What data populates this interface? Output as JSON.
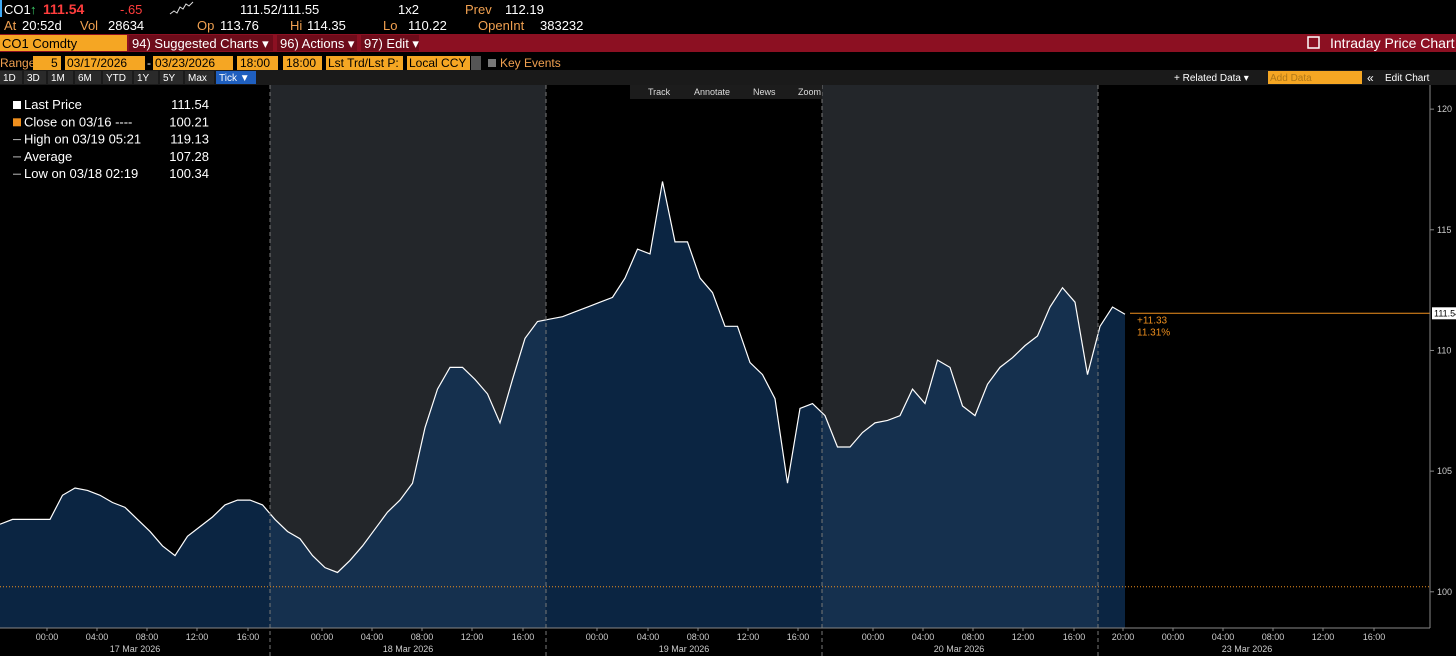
{
  "header": {
    "ticker": "CO1",
    "arrow": "↑",
    "last": "111.54",
    "change": "-.65",
    "bid_ask": "111.52/111.55",
    "size": "1x2",
    "prev_label": "Prev",
    "prev": "112.19",
    "at_label": "At",
    "time": "20:52d",
    "vol_label": "Vol",
    "vol": "28634",
    "op_label": "Op",
    "op": "113.76",
    "hi_label": "Hi",
    "hi": "114.35",
    "lo_label": "Lo",
    "lo": "110.22",
    "oi_label": "OpenInt",
    "oi": "383232"
  },
  "menu": {
    "security": "CO1 Comdty",
    "items": [
      "94) Suggested Charts ▾",
      "96) Actions ▾",
      "97) Edit ▾"
    ],
    "title": "Intraday Price Chart"
  },
  "range_bar": {
    "range_label": "Range",
    "range_n": "5",
    "start": "03/17/2026",
    "dash": "-",
    "end": "03/23/2026",
    "time_from": "18:00",
    "time_to": "18:00",
    "field": "Lst Trd/Lst P:",
    "currency": "Local CCY",
    "key_events": "Key Events"
  },
  "periods": [
    "1D",
    "3D",
    "1M",
    "6M",
    "YTD",
    "1Y",
    "5Y",
    "Max",
    "Tick ▼"
  ],
  "right_tools": {
    "related": "+ Related Data ▾",
    "add": "Add Data",
    "collapse": "«",
    "edit": "Edit Chart"
  },
  "chart_tools": [
    "Track",
    "Annotate",
    "News",
    "Zoom"
  ],
  "chart_data": {
    "type": "area",
    "color": "#ffffff",
    "fill": "#0b2542",
    "values": [
      102.8,
      103,
      103,
      103,
      103,
      104,
      104.3,
      104.2,
      104,
      103.7,
      103.5,
      103,
      102.5,
      101.9,
      101.5,
      102.3,
      102.7,
      103.1,
      103.6,
      103.8,
      103.8,
      103.6,
      103,
      102.5,
      102.2,
      101.5,
      101,
      100.8,
      101.3,
      101.9,
      102.6,
      103.3,
      103.8,
      104.5,
      106.8,
      108.4,
      109.3,
      109.3,
      108.8,
      108.2,
      107,
      108.8,
      110.5,
      111.2,
      111.3,
      111.4,
      111.6,
      111.8,
      112,
      112.2,
      113,
      114.2,
      114,
      117,
      114.5,
      114.5,
      113,
      112.4,
      111,
      111,
      109.5,
      109,
      108,
      104.5,
      107.6,
      107.8,
      107.3,
      106,
      106,
      106.6,
      107,
      107.1,
      107.3,
      108.4,
      107.8,
      109.6,
      109.3,
      107.7,
      107.3,
      108.6,
      109.3,
      109.7,
      110.2,
      110.6,
      111.8,
      112.6,
      112,
      109,
      111,
      111.8,
      111.5
    ],
    "ylim": [
      98.5,
      121
    ],
    "yticks": [
      100,
      105,
      110,
      115,
      120
    ],
    "legend": [
      {
        "label": "Last Price",
        "value": 111.54,
        "color": "#ffffff"
      },
      {
        "label": "Close on 03/16 ----",
        "value": 100.21,
        "color": "#f0901e"
      },
      {
        "label": "High on 03/19 05:21",
        "value": 119.13,
        "color": "#bbbbbb"
      },
      {
        "label": "Average",
        "value": 107.28,
        "color": "#bbbbbb"
      },
      {
        "label": "Low on 03/18 02:19",
        "value": 100.34,
        "color": "#bbbbbb"
      }
    ],
    "line_color": "#f0901e",
    "change_label": "+11.33",
    "change_pct": "11.31%",
    "x_labels": [
      "00:00",
      "04:00",
      "08:00",
      "12:00",
      "16:00",
      "00:00",
      "04:00",
      "08:00",
      "12:00",
      "16:00",
      "00:00",
      "04:00",
      "08:00",
      "12:00",
      "16:00",
      "00:00",
      "04:00",
      "08:00",
      "12:00",
      "16:00",
      "20:00",
      "00:00",
      "04:00",
      "08:00",
      "12:00",
      "16:00"
    ],
    "days": [
      "17 Mar 2026",
      "18 Mar 2026",
      "19 Mar 2026",
      "20 Mar 2026",
      "23 Mar 2026"
    ]
  }
}
